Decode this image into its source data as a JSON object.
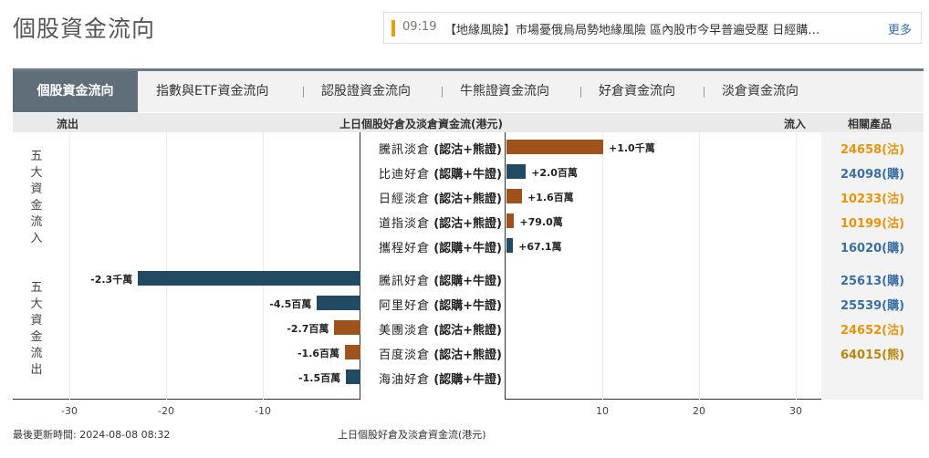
{
  "page_title": "個股資金流向",
  "ticker": {
    "time": "09:19",
    "text": "【地緣風險】市場憂俄烏局勢地緣風險 區內股市今早普遍受壓 日經購…",
    "more": "更多"
  },
  "tabs": [
    {
      "label": "個股資金流向",
      "active": true
    },
    {
      "label": "指數與ETF資金流向"
    },
    {
      "label": "認股證資金流向"
    },
    {
      "label": "牛熊證資金流向"
    },
    {
      "label": "好倉資金流向"
    },
    {
      "label": "淡倉資金流向"
    }
  ],
  "header": {
    "outflow": "流出",
    "title": "上日個股好倉及淡倉資金流(港元)",
    "inflow": "流入",
    "products": "相關產品"
  },
  "group_labels": {
    "inflow": "五大資金流入",
    "outflow": "五大資金流出"
  },
  "rows": [
    {
      "name": "騰訊",
      "side": "淡倉",
      "type": "(認沽+熊證)",
      "value_label": "+1.0千萬",
      "product": "24658(沽)"
    },
    {
      "name": "比迪",
      "side": "好倉",
      "type": "(認購+牛證)",
      "value_label": "+2.0百萬",
      "product": "24098(購)"
    },
    {
      "name": "日經",
      "side": "淡倉",
      "type": "(認沽+熊證)",
      "value_label": "+1.6百萬",
      "product": "10233(沽)"
    },
    {
      "name": "道指",
      "side": "淡倉",
      "type": "(認沽+熊證)",
      "value_label": "+79.0萬",
      "product": "10199(沽)"
    },
    {
      "name": "攜程",
      "side": "好倉",
      "type": "(認購+牛證)",
      "value_label": "+67.1萬",
      "product": "16020(購)"
    },
    {
      "name": "騰訊",
      "side": "好倉",
      "type": "(認購+牛證)",
      "value_label": "-2.3千萬",
      "product": "25613(購)"
    },
    {
      "name": "阿里",
      "side": "好倉",
      "type": "(認購+牛證)",
      "value_label": "-4.5百萬",
      "product": "25539(購)"
    },
    {
      "name": "美團",
      "side": "淡倉",
      "type": "(認沽+熊證)",
      "value_label": "-2.7百萬",
      "product": "24652(沽)"
    },
    {
      "name": "百度",
      "side": "淡倉",
      "type": "(認沽+熊證)",
      "value_label": "-1.6百萬",
      "product": "64015(熊)"
    },
    {
      "name": "海油",
      "side": "好倉",
      "type": "(認購+牛證)",
      "value_label": "-1.5百萬",
      "product": ""
    }
  ],
  "chart_data": {
    "type": "bar",
    "categories": [
      "騰訊淡倉 (認沽+熊證)",
      "比迪好倉 (認購+牛證)",
      "日經淡倉 (認沽+熊證)",
      "道指淡倉 (認沽+熊證)",
      "攜程好倉 (認購+牛證)",
      "騰訊好倉 (認購+牛證)",
      "阿里好倉 (認購+牛證)",
      "美團淡倉 (認沽+熊證)",
      "百度淡倉 (認沽+熊證)",
      "海油好倉 (認購+牛證)"
    ],
    "values": [
      10.0,
      2.0,
      1.6,
      0.79,
      0.671,
      -23.0,
      -4.5,
      -2.7,
      -1.6,
      -1.5
    ],
    "title": "上日個股好倉及淡倉資金流(港元)",
    "x_ticks_negative": [
      "-30",
      "-20",
      "-10"
    ],
    "x_ticks_positive": [
      "10",
      "20",
      "30"
    ],
    "xlim": [
      -30,
      30
    ]
  },
  "colors": {
    "long": "#234a63",
    "short": "#a0521d",
    "product_call": "#3a6ea5",
    "product_put": "#e8930c",
    "product_bear": "#b8860b"
  },
  "footer": {
    "updated": "最後更新時間: 2024-08-08 08:32",
    "caption": "上日個股好倉及淡倉資金流(港元)"
  }
}
